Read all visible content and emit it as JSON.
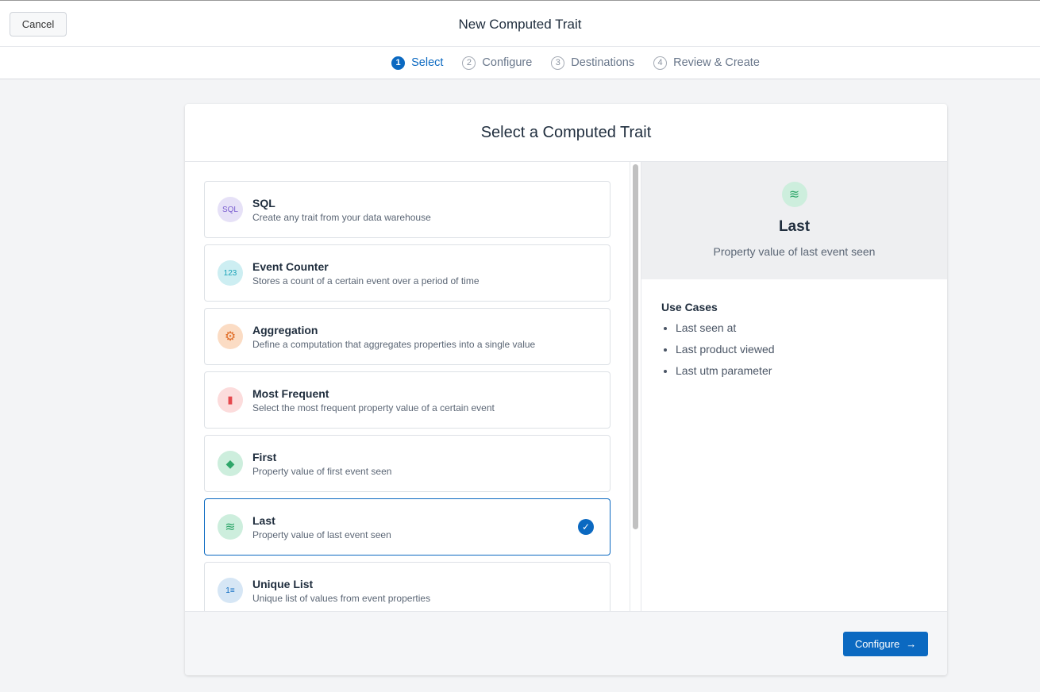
{
  "header": {
    "cancel_label": "Cancel",
    "title": "New Computed Trait"
  },
  "steps": [
    {
      "num": "1",
      "label": "Select"
    },
    {
      "num": "2",
      "label": "Configure"
    },
    {
      "num": "3",
      "label": "Destinations"
    },
    {
      "num": "4",
      "label": "Review & Create"
    }
  ],
  "card": {
    "title": "Select a Computed Trait"
  },
  "items": [
    {
      "title": "SQL",
      "desc": "Create any trait from your data warehouse",
      "icon": "sql-icon",
      "glyph": "SQL"
    },
    {
      "title": "Event Counter",
      "desc": "Stores a count of a certain event over a period of time",
      "icon": "counter-icon",
      "glyph": "123"
    },
    {
      "title": "Aggregation",
      "desc": "Define a computation that aggregates properties into a single value",
      "icon": "aggregation-icon",
      "glyph": "⚙"
    },
    {
      "title": "Most Frequent",
      "desc": "Select the most frequent property value of a certain event",
      "icon": "bar-chart-icon",
      "glyph": "▮"
    },
    {
      "title": "First",
      "desc": "Property value of first event seen",
      "icon": "layer-icon",
      "glyph": "◆"
    },
    {
      "title": "Last",
      "desc": "Property value of last event seen",
      "icon": "layers-icon",
      "glyph": "≋"
    },
    {
      "title": "Unique List",
      "desc": "Unique list of values from event properties",
      "icon": "numbered-list-icon",
      "glyph": "1≡"
    }
  ],
  "selected": "Last",
  "detail": {
    "title": "Last",
    "desc": "Property value of last event seen",
    "use_cases_title": "Use Cases",
    "use_cases": [
      "Last seen at",
      "Last product viewed",
      "Last utm parameter"
    ]
  },
  "footer": {
    "configure_label": "Configure",
    "arrow": "→"
  },
  "colors": {
    "accent": "#0b69c1"
  }
}
